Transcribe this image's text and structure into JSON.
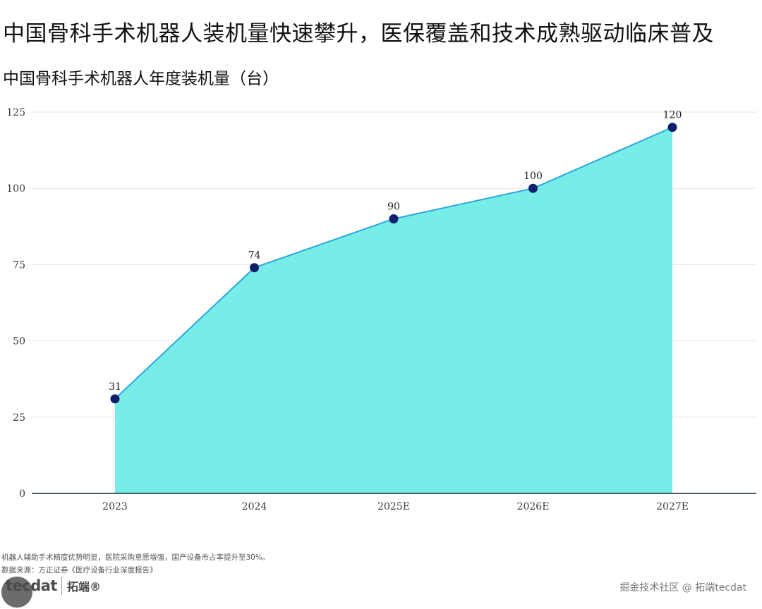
{
  "headline": "中国骨科手术机器人装机量快速攀升，医保覆盖和技术成熟驱动临床普及",
  "chart_data": {
    "type": "area",
    "title": "中国骨科手术机器人年度装机量（台）",
    "categories": [
      "2023",
      "2024",
      "2025E",
      "2026E",
      "2027E"
    ],
    "series": [
      {
        "values": [
          31,
          74,
          90,
          100,
          120
        ]
      }
    ],
    "data_labels": [
      "31",
      "74",
      "90",
      "100",
      "120"
    ],
    "yticks": [
      0,
      25,
      50,
      75,
      100,
      125
    ],
    "ylim": [
      0,
      125
    ],
    "grid": true,
    "colors": {
      "fill": "#76ede6",
      "line": "#2aa7de",
      "marker": "#0f1f6b",
      "grid": "#e6e6e6",
      "axis": "#1a2a3a"
    }
  },
  "footnote": "机器人辅助手术精度优势明显，医院采购意愿增强，国产设备市占率提升至30%。",
  "source": "数据来源：方正证券《医疗设备行业深度报告》",
  "logo": {
    "text": "tecdat",
    "cn": "拓端®"
  },
  "watermark": "掘金技术社区 @ 拓端tecdat"
}
